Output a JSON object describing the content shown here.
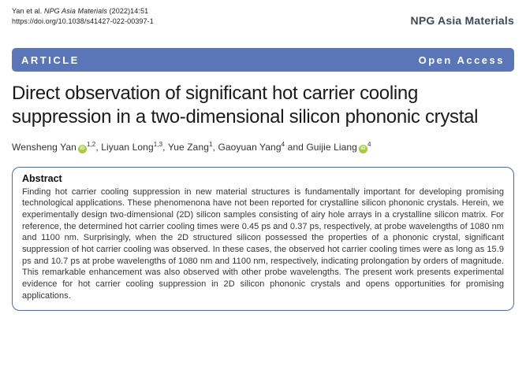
{
  "header": {
    "citation_prefix": "Yan et al. ",
    "citation_journal": "NPG Asia Materials",
    "citation_suffix": " (2022)14:51",
    "doi": "https://doi.org/10.1038/s41427-022-00397-1",
    "journal_name": "NPG Asia Materials"
  },
  "banner": {
    "article_label": "ARTICLE",
    "open_access_label": "Open Access",
    "background_color": "#5b76b8"
  },
  "title": {
    "text": "Direct observation of significant hot carrier cooling suppression in a two-dimensional silicon phononic crystal"
  },
  "authors": [
    {
      "name": "Wensheng Yan",
      "orcid": true,
      "sup": "1,2",
      "sep": ", "
    },
    {
      "name": "Liyuan Long",
      "orcid": false,
      "sup": "1,3",
      "sep": ", "
    },
    {
      "name": "Yue Zang",
      "orcid": false,
      "sup": "1",
      "sep": ", "
    },
    {
      "name": "Gaoyuan Yang",
      "orcid": false,
      "sup": "4",
      "sep": " and "
    },
    {
      "name": "Guijie Liang",
      "orcid": true,
      "sup": "4",
      "sep": ""
    }
  ],
  "abstract": {
    "heading": "Abstract",
    "body": "Finding hot carrier cooling suppression in new material structures is fundamentally important for developing promising technological applications. These phenomenona have not been reported for crystalline silicon phononic crystals. Herein, we experimentally design two-dimensional (2D) silicon samples consisting of airy hole arrays in a crystalline silicon matrix. For reference, the determined hot carrier cooling times were 0.45 ps and 0.37 ps, respectively, at probe wavelengths of 1080 nm and 1100 nm. Surprisingly, when the 2D structured silicon possessed the properties of a phononic crystal, significant suppression of hot carrier cooling was observed. In these cases, the observed hot carrier cooling times were as long as 15.9 ps and 10.7 ps at probe wavelengths of 1080 nm and 1100 nm, respectively, indicating prolongation by orders of magnitude. This remarkable enhancement was also observed with other probe wavelengths. The present work presents experimental evidence for hot carrier cooling suppression in 2D silicon phononic crystals and opens opportunities for promising applications."
  },
  "icons": {
    "orcid_glyph": "iD"
  },
  "colors": {
    "banner_blue": "#5b76b8",
    "abstract_border_blue": "#4a6cb3",
    "orcid_green": "#a6ce39",
    "journal_name_slate": "#3d4a56"
  }
}
